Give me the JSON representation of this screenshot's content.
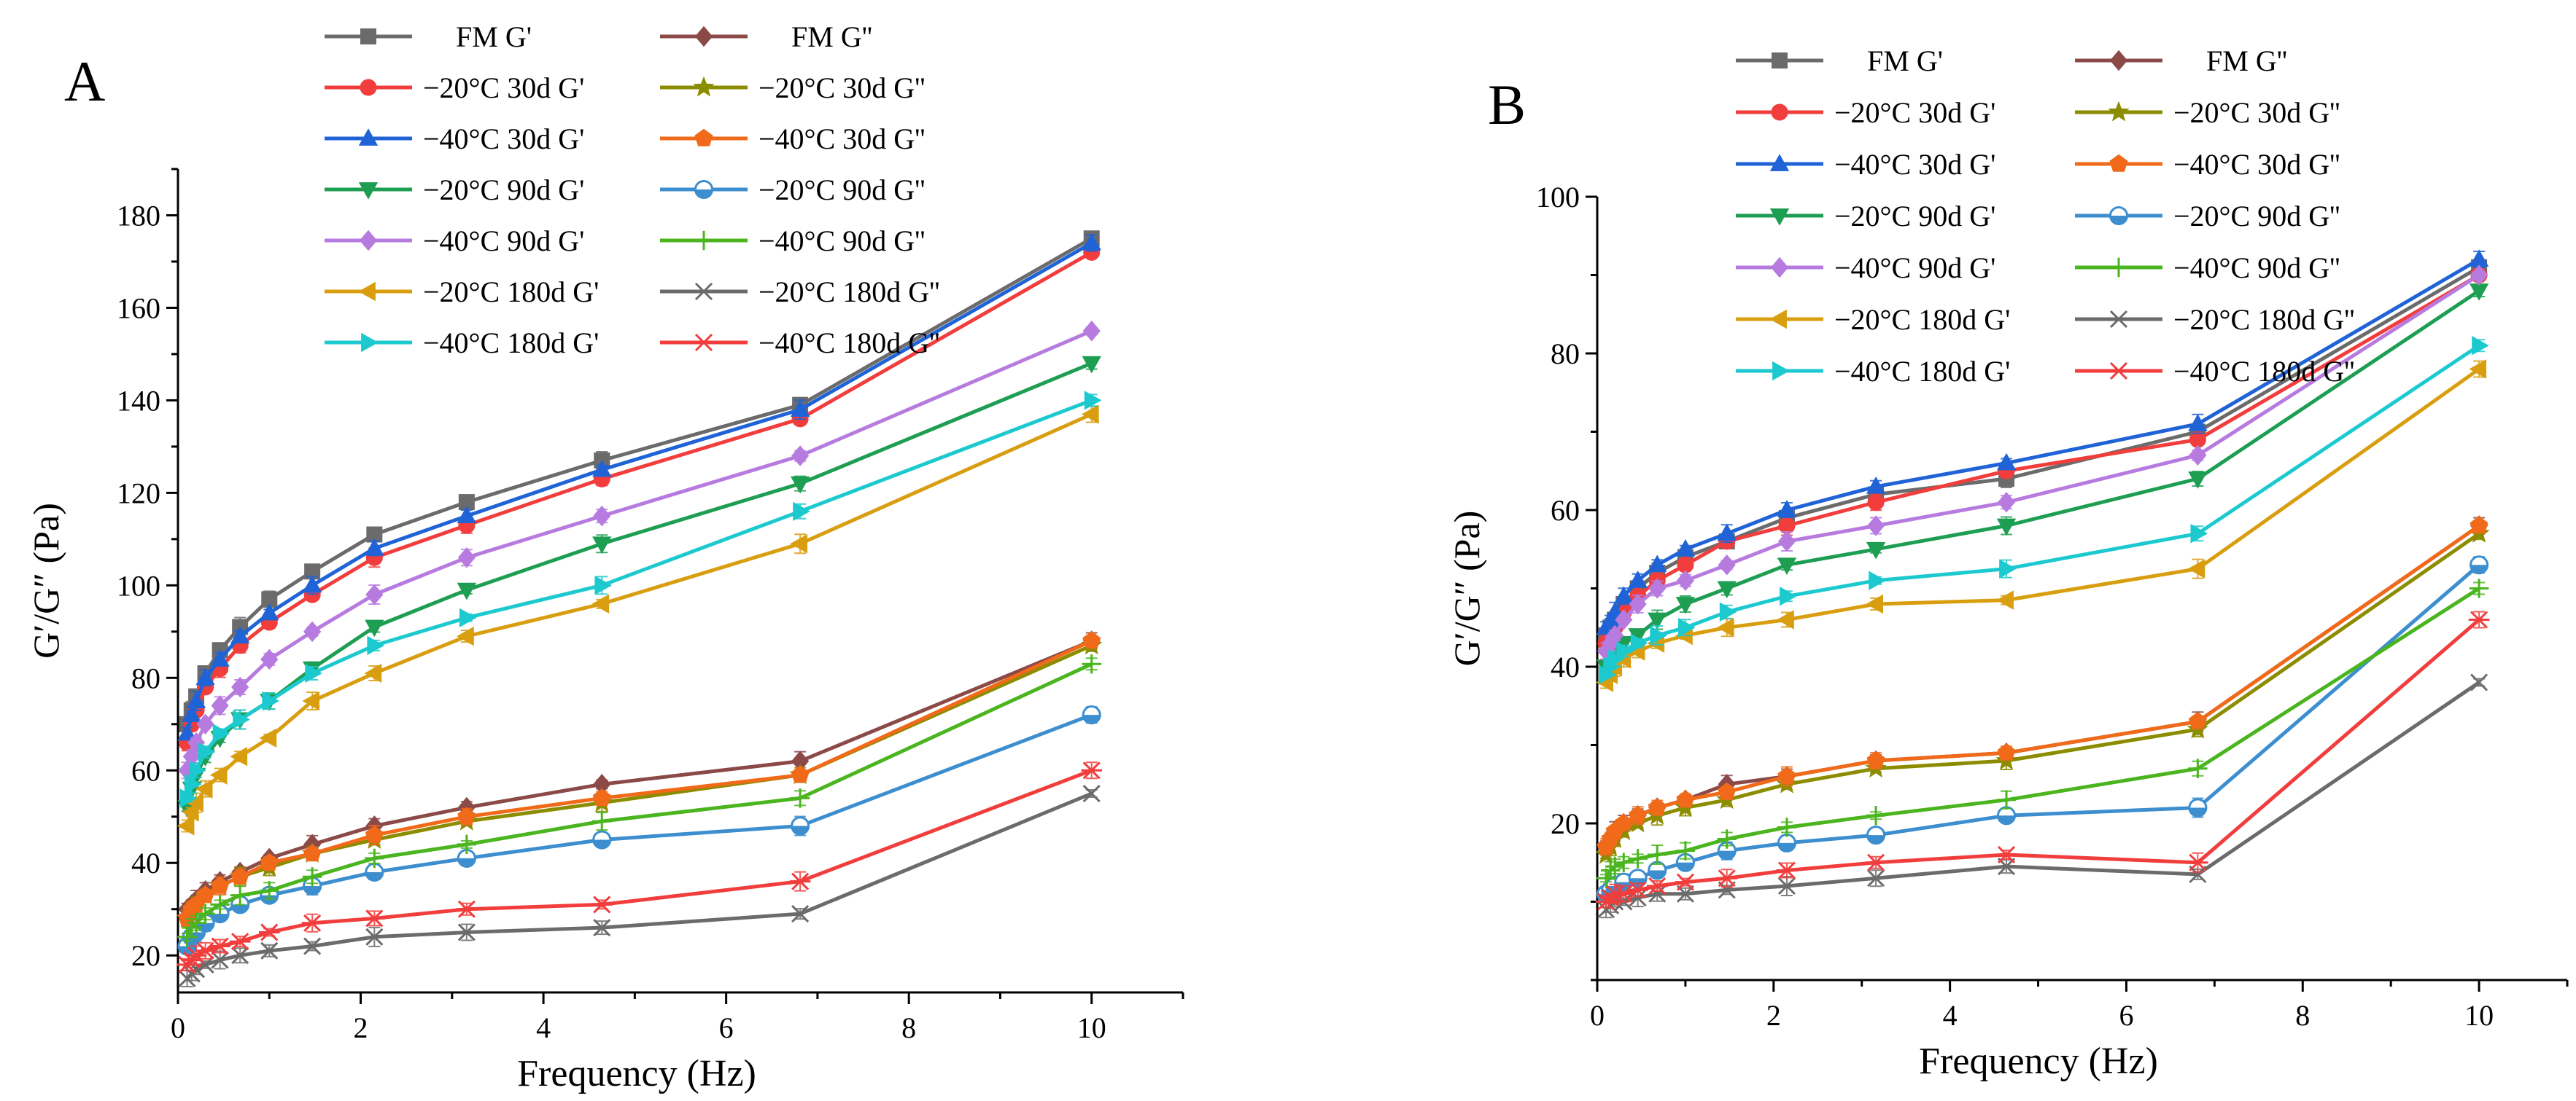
{
  "figure": {
    "panels": [
      "A",
      "B"
    ]
  },
  "chart_data": [
    {
      "panel": "A",
      "type": "line",
      "title": "",
      "xlabel": "Frequency (Hz)",
      "ylabel": "G′/G″ (Pa)",
      "xlim": [
        0,
        11
      ],
      "ylim": [
        12,
        190
      ],
      "xticks": [
        0,
        2,
        4,
        6,
        8,
        10
      ],
      "yticks": [
        20,
        40,
        60,
        80,
        100,
        120,
        140,
        160,
        180
      ],
      "x": [
        0.1,
        0.15,
        0.2,
        0.3,
        0.46,
        0.68,
        1,
        1.47,
        2.15,
        3.16,
        4.64,
        6.81,
        10
      ],
      "legend_position": "top",
      "series": [
        {
          "name": "FM G'",
          "color": "#6b6b6b",
          "marker": "square",
          "values": [
            70,
            73,
            76,
            81,
            86,
            91,
            97,
            103,
            111,
            118,
            127,
            139,
            175
          ]
        },
        {
          "name": "FM G''",
          "color": "#8b4a48",
          "marker": "diamond",
          "values": [
            30,
            31,
            32,
            34,
            36,
            38,
            41,
            44,
            48,
            52,
            57,
            62,
            88
          ]
        },
        {
          "name": "−20°C 30d G'",
          "color": "#f23d3d",
          "marker": "circle",
          "values": [
            66,
            70,
            73,
            78,
            82,
            87,
            92,
            98,
            106,
            113,
            123,
            136,
            172
          ]
        },
        {
          "name": "−20°C 30d G''",
          "color": "#8c8c00",
          "marker": "star",
          "values": [
            28,
            29,
            31,
            33,
            35,
            37,
            39,
            42,
            45,
            49,
            53,
            59,
            87
          ]
        },
        {
          "name": "−40°C 30d G'",
          "color": "#1f63d6",
          "marker": "triangle-up",
          "values": [
            68,
            72,
            75,
            80,
            84,
            89,
            94,
            100,
            108,
            115,
            125,
            138,
            174
          ]
        },
        {
          "name": "−40°C 30d G''",
          "color": "#f06a1a",
          "marker": "pentagon",
          "values": [
            28,
            30,
            31,
            33,
            35,
            37,
            40,
            42,
            46,
            50,
            54,
            59,
            88
          ]
        },
        {
          "name": "−20°C 90d G'",
          "color": "#1e9e52",
          "marker": "triangle-down",
          "values": [
            52,
            56,
            59,
            63,
            67,
            71,
            75,
            82,
            91,
            99,
            109,
            122,
            148
          ]
        },
        {
          "name": "−20°C 90d G''",
          "color": "#3d8ecf",
          "marker": "circle-half",
          "values": [
            22,
            24,
            25,
            27,
            29,
            31,
            33,
            35,
            38,
            41,
            45,
            48,
            72
          ]
        },
        {
          "name": "−40°C 90d G'",
          "color": "#b77be0",
          "marker": "diamond",
          "values": [
            60,
            63,
            66,
            70,
            74,
            78,
            84,
            90,
            98,
            106,
            115,
            128,
            155
          ]
        },
        {
          "name": "−40°C 90d G''",
          "color": "#4ab51e",
          "marker": "plus",
          "values": [
            24,
            26,
            27,
            29,
            31,
            33,
            34,
            37,
            41,
            44,
            49,
            54,
            83
          ]
        },
        {
          "name": "−20°C 180d G'",
          "color": "#d99e10",
          "marker": "triangle-left",
          "values": [
            48,
            51,
            53,
            56,
            59,
            63,
            67,
            75,
            81,
            89,
            96,
            109,
            137
          ]
        },
        {
          "name": "−20°C 180d G''",
          "color": "#6b6b6b",
          "marker": "x",
          "values": [
            15,
            16,
            17,
            18,
            19,
            20,
            21,
            22,
            24,
            25,
            26,
            29,
            55
          ]
        },
        {
          "name": "−40°C 180d G'",
          "color": "#1cc9cf",
          "marker": "triangle-right",
          "values": [
            54,
            57,
            60,
            64,
            68,
            71,
            75,
            81,
            87,
            93,
            100,
            116,
            140
          ]
        },
        {
          "name": "−40°C 180d G''",
          "color": "#f23d3d",
          "marker": "asterisk",
          "values": [
            18,
            19,
            20,
            21,
            22,
            23,
            25,
            27,
            28,
            30,
            31,
            36,
            60
          ]
        }
      ]
    },
    {
      "panel": "B",
      "type": "line",
      "title": "",
      "xlabel": "Frequency (Hz)",
      "ylabel": "G′/G″ (Pa)",
      "xlim": [
        0,
        11
      ],
      "ylim": [
        0,
        100
      ],
      "xticks": [
        0,
        2,
        4,
        6,
        8,
        10
      ],
      "yticks": [
        20,
        40,
        60,
        80,
        100
      ],
      "x": [
        0.1,
        0.15,
        0.2,
        0.3,
        0.46,
        0.68,
        1,
        1.47,
        2.15,
        3.16,
        4.64,
        6.81,
        10
      ],
      "legend_position": "top",
      "series": [
        {
          "name": "FM G'",
          "color": "#6b6b6b",
          "marker": "square",
          "values": [
            44,
            45,
            46,
            48,
            50,
            52,
            54,
            56,
            59,
            62,
            64,
            70,
            91
          ]
        },
        {
          "name": "FM G''",
          "color": "#8b4a48",
          "marker": "diamond",
          "values": [
            17,
            18,
            19,
            20,
            21,
            22,
            23,
            25,
            26,
            28,
            29,
            33,
            58
          ]
        },
        {
          "name": "−20°C 30d G'",
          "color": "#f23d3d",
          "marker": "circle",
          "values": [
            43,
            44,
            45,
            47,
            49,
            51,
            53,
            56,
            58,
            61,
            65,
            69,
            90
          ]
        },
        {
          "name": "−20°C 30d G''",
          "color": "#8c8c00",
          "marker": "star",
          "values": [
            16,
            17,
            18,
            19,
            20,
            21,
            22,
            23,
            25,
            27,
            28,
            32,
            57
          ]
        },
        {
          "name": "−40°C 30d G'",
          "color": "#1f63d6",
          "marker": "triangle-up",
          "values": [
            45,
            46,
            47,
            49,
            51,
            53,
            55,
            57,
            60,
            63,
            66,
            71,
            92
          ]
        },
        {
          "name": "−40°C 30d G''",
          "color": "#f06a1a",
          "marker": "pentagon",
          "values": [
            17,
            18,
            19,
            20,
            21,
            22,
            23,
            24,
            26,
            28,
            29,
            33,
            58
          ]
        },
        {
          "name": "−20°C 90d G'",
          "color": "#1e9e52",
          "marker": "triangle-down",
          "values": [
            40,
            41,
            42,
            43,
            44,
            46,
            48,
            50,
            53,
            55,
            58,
            64,
            88
          ]
        },
        {
          "name": "−20°C 90d G''",
          "color": "#3d8ecf",
          "marker": "circle-half",
          "values": [
            11,
            11.5,
            12,
            12.5,
            13,
            14,
            15,
            16.5,
            17.5,
            18.5,
            21,
            22,
            53
          ]
        },
        {
          "name": "−40°C 90d G'",
          "color": "#b77be0",
          "marker": "diamond",
          "values": [
            42,
            43,
            44,
            46,
            48,
            50,
            51,
            53,
            56,
            58,
            61,
            67,
            90
          ]
        },
        {
          "name": "−40°C 90d G''",
          "color": "#4ab51e",
          "marker": "plus",
          "values": [
            13,
            14,
            14.5,
            15,
            15.5,
            16,
            16.5,
            18,
            19.5,
            21,
            23,
            27,
            50
          ]
        },
        {
          "name": "−20°C 180d G'",
          "color": "#d99e10",
          "marker": "triangle-left",
          "values": [
            38,
            39,
            40,
            41,
            42,
            43,
            44,
            45,
            46,
            48,
            48.5,
            52.5,
            78
          ]
        },
        {
          "name": "−20°C 180d G''",
          "color": "#6b6b6b",
          "marker": "x",
          "values": [
            9,
            9.5,
            10,
            10,
            10.5,
            11,
            11,
            11.5,
            12,
            13,
            14.5,
            13.5,
            38
          ]
        },
        {
          "name": "−40°C 180d G'",
          "color": "#1cc9cf",
          "marker": "triangle-right",
          "values": [
            39,
            40,
            41,
            42,
            43,
            44,
            45,
            47,
            49,
            51,
            52.5,
            57,
            81
          ]
        },
        {
          "name": "−40°C 180d G''",
          "color": "#f23d3d",
          "marker": "asterisk",
          "values": [
            10,
            10.5,
            11,
            11,
            11.5,
            12,
            12.5,
            13,
            14,
            15,
            16,
            15,
            46
          ]
        }
      ]
    }
  ]
}
